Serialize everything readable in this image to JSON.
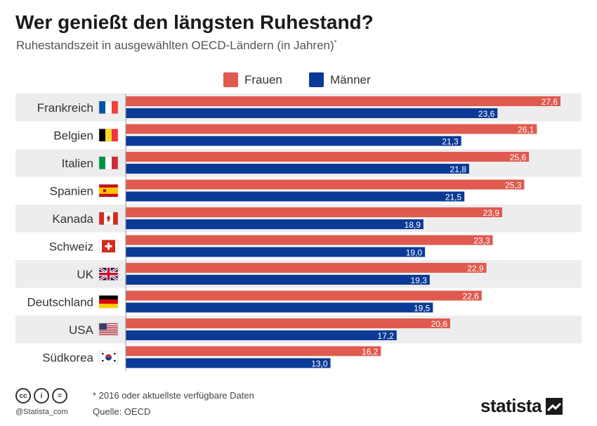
{
  "header": {
    "title": "Wer genießt den längsten Ruhestand?",
    "subtitle": "Ruhestandszeit in ausgewählten OECD-Ländern (in Jahren)",
    "subtitle_mark": "*"
  },
  "colors": {
    "frauen": "#E05A4F",
    "maenner": "#0B3A96",
    "stripe": "#EDEDED"
  },
  "chart_data": {
    "type": "bar",
    "orientation": "horizontal",
    "title": "Wer genießt den längsten Ruhestand?",
    "subtitle": "Ruhestandszeit in ausgewählten OECD-Ländern (in Jahren)*",
    "categories": [
      "Frankreich",
      "Belgien",
      "Italien",
      "Spanien",
      "Kanada",
      "Schweiz",
      "UK",
      "Deutschland",
      "USA",
      "Südkorea"
    ],
    "flags": [
      "fr",
      "be",
      "it",
      "es",
      "ca",
      "ch",
      "gb",
      "de",
      "us",
      "kr"
    ],
    "series": [
      {
        "name": "Frauen",
        "values": [
          27.6,
          26.1,
          25.6,
          25.3,
          23.9,
          23.3,
          22.9,
          22.6,
          20.6,
          16.2
        ],
        "labels": [
          "27,6",
          "26,1",
          "25,6",
          "25,3",
          "23,9",
          "23,3",
          "22,9",
          "22,6",
          "20,6",
          "16,2"
        ]
      },
      {
        "name": "Männer",
        "values": [
          23.6,
          21.3,
          21.8,
          21.5,
          18.9,
          19.0,
          19.3,
          19.5,
          17.2,
          13.0
        ],
        "labels": [
          "23,6",
          "21,3",
          "21,8",
          "21,5",
          "18,9",
          "19,0",
          "19,3",
          "19,5",
          "17,2",
          "13,0"
        ]
      }
    ],
    "xlim": [
      0,
      27.6
    ],
    "legend": "top-center",
    "grid": false
  },
  "footer": {
    "cc_icons": [
      "cc-icon",
      "person-icon",
      "equal-icon"
    ],
    "cc_glyphs": [
      "cc",
      "i",
      "="
    ],
    "handle": "@Statista_com",
    "note": "* 2016 oder aktuellste verfügbare Daten",
    "source": "Quelle: OECD",
    "brand": "statista"
  }
}
